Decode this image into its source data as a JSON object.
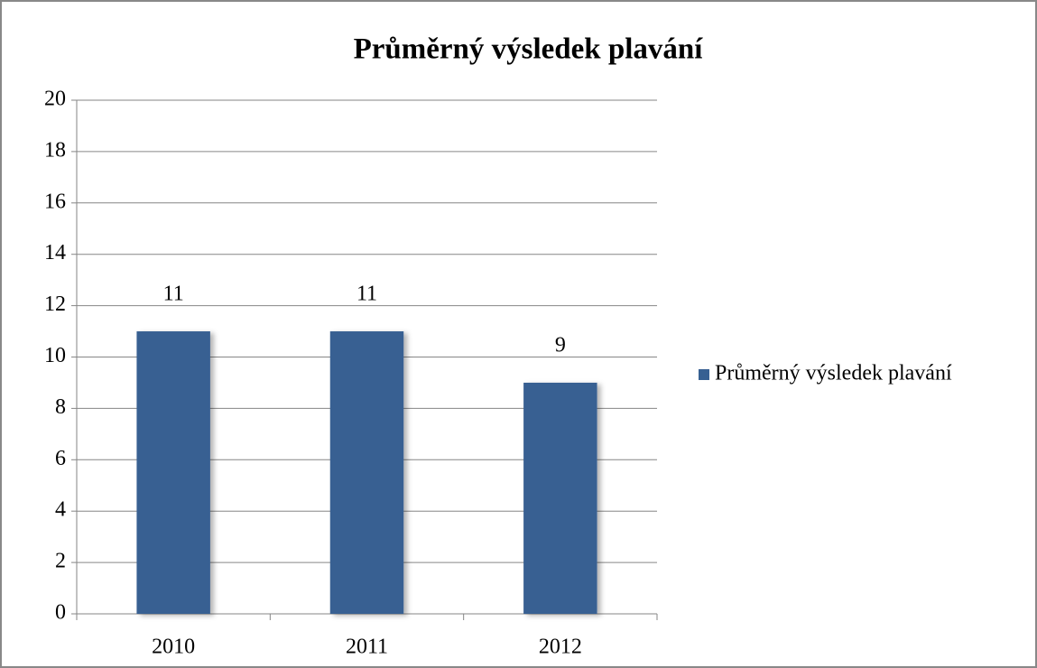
{
  "chart_data": {
    "type": "bar",
    "title": "Průměrný výsledek plavání",
    "categories": [
      "2010",
      "2011",
      "2012"
    ],
    "series": [
      {
        "name": "Průměrný výsledek plavání",
        "color": "#376092",
        "values": [
          11,
          11,
          9
        ]
      }
    ],
    "ylim": [
      0,
      20
    ],
    "yticks": [
      0,
      2,
      4,
      6,
      8,
      10,
      12,
      14,
      16,
      18,
      20
    ],
    "grid": true,
    "legend": "right"
  }
}
